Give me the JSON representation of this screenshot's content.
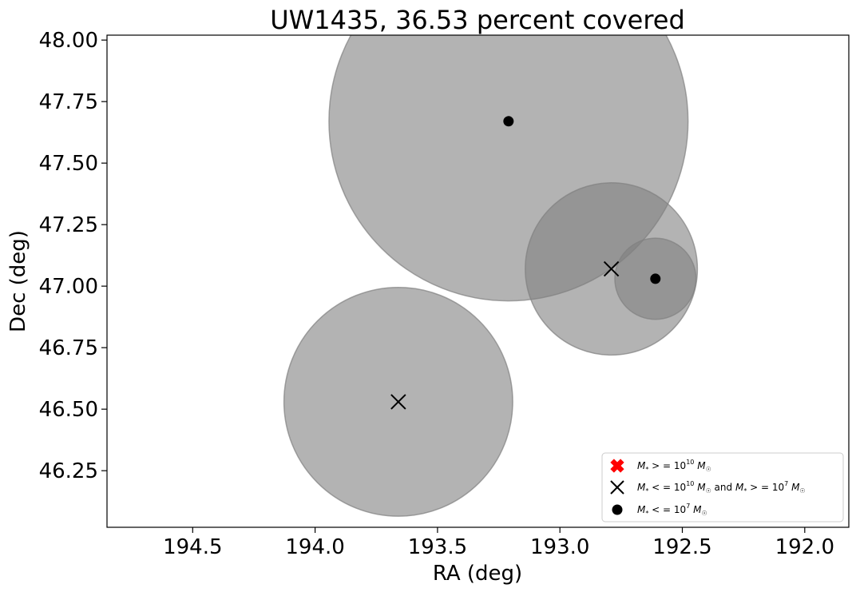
{
  "chart_data": {
    "type": "scatter",
    "title": "UW1435, 36.53 percent covered",
    "xlabel": "RA (deg)",
    "ylabel": "Dec (deg)",
    "xlim": [
      194.85,
      191.82
    ],
    "ylim": [
      46.02,
      48.02
    ],
    "x_inverted": true,
    "xticks": [
      194.5,
      194.0,
      193.5,
      193.0,
      192.5,
      192.0
    ],
    "xtick_labels": [
      "194.5",
      "194.0",
      "193.5",
      "193.0",
      "192.5",
      "192.0"
    ],
    "yticks": [
      46.25,
      46.5,
      46.75,
      47.0,
      47.25,
      47.5,
      47.75,
      48.0
    ],
    "ytick_labels": [
      "46.25",
      "46.50",
      "46.75",
      "47.00",
      "47.25",
      "47.50",
      "47.75",
      "48.00"
    ],
    "grid": false,
    "legend_position": "lower-right",
    "circles": [
      {
        "ra": 193.21,
        "dec": 47.67,
        "radius_deg": 0.73
      },
      {
        "ra": 193.66,
        "dec": 46.53,
        "radius_deg": 0.465
      },
      {
        "ra": 192.79,
        "dec": 47.07,
        "radius_deg": 0.35
      },
      {
        "ra": 192.61,
        "dec": 47.03,
        "radius_deg": 0.165
      }
    ],
    "circle_color": "#808080",
    "series": [
      {
        "marker": "X-filled",
        "color": "#ff0000",
        "points": []
      },
      {
        "marker": "x",
        "color": "#000000",
        "points": [
          [
            192.79,
            47.07
          ],
          [
            193.66,
            46.53
          ]
        ]
      },
      {
        "marker": "dot",
        "color": "#000000",
        "points": [
          [
            193.21,
            47.67
          ],
          [
            192.61,
            47.03
          ]
        ]
      }
    ],
    "legend": [
      {
        "marker": "X-filled",
        "color": "#ff0000",
        "label": "M* > = 10^10 M☉"
      },
      {
        "marker": "x",
        "color": "#000000",
        "label": "M* < = 10^10 M☉ and M* > = 10^7 M☉"
      },
      {
        "marker": "dot",
        "color": "#000000",
        "label": "M* < = 10^7 M☉"
      }
    ]
  }
}
